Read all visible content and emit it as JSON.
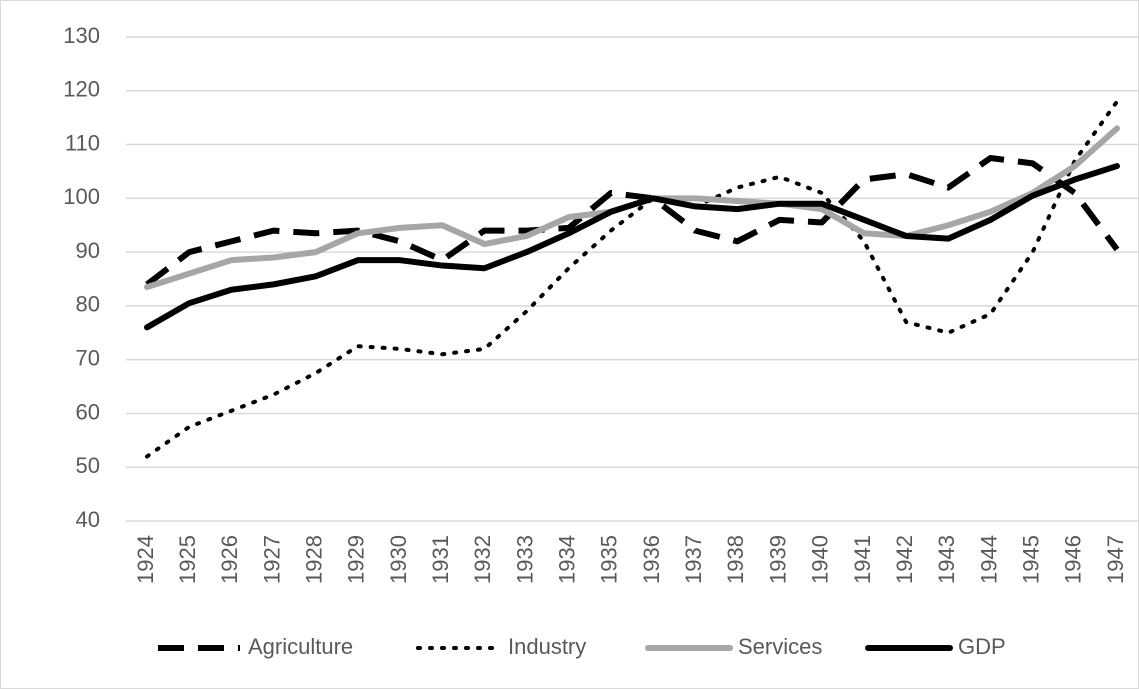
{
  "chart_data": {
    "type": "line",
    "categories": [
      "1924",
      "1925",
      "1926",
      "1927",
      "1928",
      "1929",
      "1930",
      "1931",
      "1932",
      "1933",
      "1934",
      "1935",
      "1936",
      "1937",
      "1938",
      "1939",
      "1940",
      "1941",
      "1942",
      "1943",
      "1944",
      "1945",
      "1946",
      "1947"
    ],
    "series": [
      {
        "name": "Agriculture",
        "color": "#000000",
        "style": "dashed",
        "values": [
          84,
          90,
          92,
          94,
          93.5,
          94,
          92,
          88.5,
          94,
          94,
          94.5,
          101,
          100,
          94,
          92,
          96,
          95.5,
          103.5,
          104.5,
          102,
          107.5,
          106.5,
          101,
          90.5
        ]
      },
      {
        "name": "Industry",
        "color": "#000000",
        "style": "dotted",
        "values": [
          52,
          57.5,
          60.5,
          63.5,
          67.5,
          72.5,
          72,
          71,
          72,
          79,
          87,
          94,
          100,
          98.5,
          102,
          104,
          101,
          92,
          77,
          75,
          78.5,
          90,
          107,
          118
        ]
      },
      {
        "name": "Services",
        "color": "#a6a6a6",
        "style": "solid",
        "values": [
          83.5,
          86,
          88.5,
          89,
          90,
          93.5,
          94.5,
          95,
          91.5,
          93,
          96.5,
          97.5,
          100,
          100,
          99.5,
          99,
          98,
          93.5,
          93,
          95,
          97.5,
          101,
          106,
          113
        ]
      },
      {
        "name": "GDP",
        "color": "#000000",
        "style": "solid",
        "values": [
          76,
          80.5,
          83,
          84,
          85.5,
          88.5,
          88.5,
          87.5,
          87,
          90,
          93.5,
          97.5,
          100,
          98.5,
          98,
          99,
          99,
          96,
          93,
          92.5,
          96,
          100.5,
          103.5,
          106
        ]
      }
    ],
    "ylim": [
      40,
      130
    ],
    "yticks": [
      40,
      50,
      60,
      70,
      80,
      90,
      100,
      110,
      120,
      130
    ],
    "grid": true,
    "legend": "bottom"
  }
}
